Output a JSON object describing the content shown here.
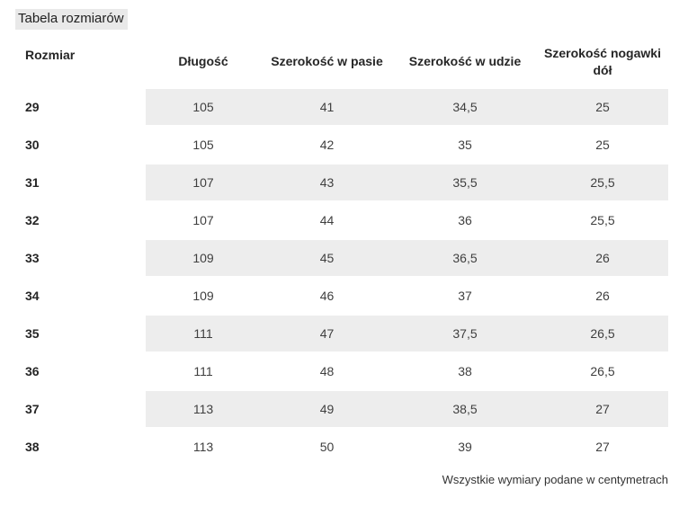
{
  "page": {
    "title": "Tabela rozmiarów",
    "footer_note": "Wszystkie wymiary podane w centymetrach"
  },
  "table": {
    "columns": [
      "Rozmiar",
      "Długość",
      "Szerokość w pasie",
      "Szerokość w udzie",
      "Szerokość nogawki dół"
    ],
    "rows": [
      {
        "size": "29",
        "values": [
          "105",
          "41",
          "34,5",
          "25"
        ]
      },
      {
        "size": "30",
        "values": [
          "105",
          "42",
          "35",
          "25"
        ]
      },
      {
        "size": "31",
        "values": [
          "107",
          "43",
          "35,5",
          "25,5"
        ]
      },
      {
        "size": "32",
        "values": [
          "107",
          "44",
          "36",
          "25,5"
        ]
      },
      {
        "size": "33",
        "values": [
          "109",
          "45",
          "36,5",
          "26"
        ]
      },
      {
        "size": "34",
        "values": [
          "109",
          "46",
          "37",
          "26"
        ]
      },
      {
        "size": "35",
        "values": [
          "111",
          "47",
          "37,5",
          "26,5"
        ]
      },
      {
        "size": "36",
        "values": [
          "111",
          "48",
          "38",
          "26,5"
        ]
      },
      {
        "size": "37",
        "values": [
          "113",
          "49",
          "38,5",
          "27"
        ]
      },
      {
        "size": "38",
        "values": [
          "113",
          "50",
          "39",
          "27"
        ]
      }
    ],
    "units": "cm"
  },
  "colors": {
    "stripe": "#ededed",
    "title_highlight": "#e9e9e9",
    "header_text": "#262626",
    "value_text": "#3f3f3f",
    "background": "#ffffff"
  }
}
